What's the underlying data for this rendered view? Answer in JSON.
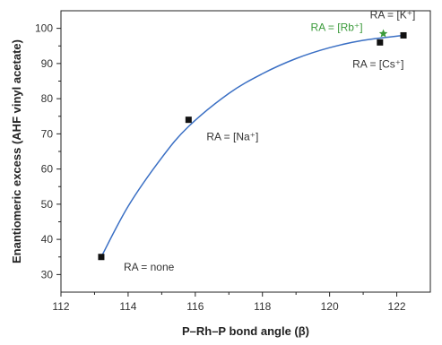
{
  "chart_data": {
    "type": "scatter",
    "xlabel": "P–Rh–P bond angle (β)",
    "ylabel": "Enantiomeric excess (AHF vinyl acetate)",
    "xlim": [
      112,
      123
    ],
    "ylim": [
      25,
      105
    ],
    "xticks": [
      112,
      114,
      116,
      118,
      120,
      122
    ],
    "yticks": [
      30,
      40,
      50,
      60,
      70,
      80,
      90,
      100
    ],
    "grid": false,
    "points": [
      {
        "x": 113.2,
        "y": 35,
        "marker": "square",
        "color": "#111111",
        "label": "RA = none"
      },
      {
        "x": 115.8,
        "y": 74,
        "marker": "square",
        "color": "#111111",
        "label": "RA = [Na⁺]"
      },
      {
        "x": 121.5,
        "y": 96,
        "marker": "square",
        "color": "#111111",
        "label": "RA = [Cs⁺]"
      },
      {
        "x": 122.2,
        "y": 98,
        "marker": "square",
        "color": "#111111",
        "label": "RA = [K⁺]"
      },
      {
        "x": 121.6,
        "y": 98.5,
        "marker": "star",
        "color": "#3a9a3a",
        "label": "RA = [Rb⁺]"
      }
    ],
    "fit_curve": {
      "color": "#3a6fc4",
      "x": [
        113.2,
        114,
        115,
        115.8,
        117,
        118,
        119,
        120,
        121,
        122.2
      ],
      "y": [
        35,
        49.4,
        63.2,
        72.1,
        81.5,
        87.1,
        91.4,
        94.5,
        96.6,
        98
      ]
    }
  }
}
